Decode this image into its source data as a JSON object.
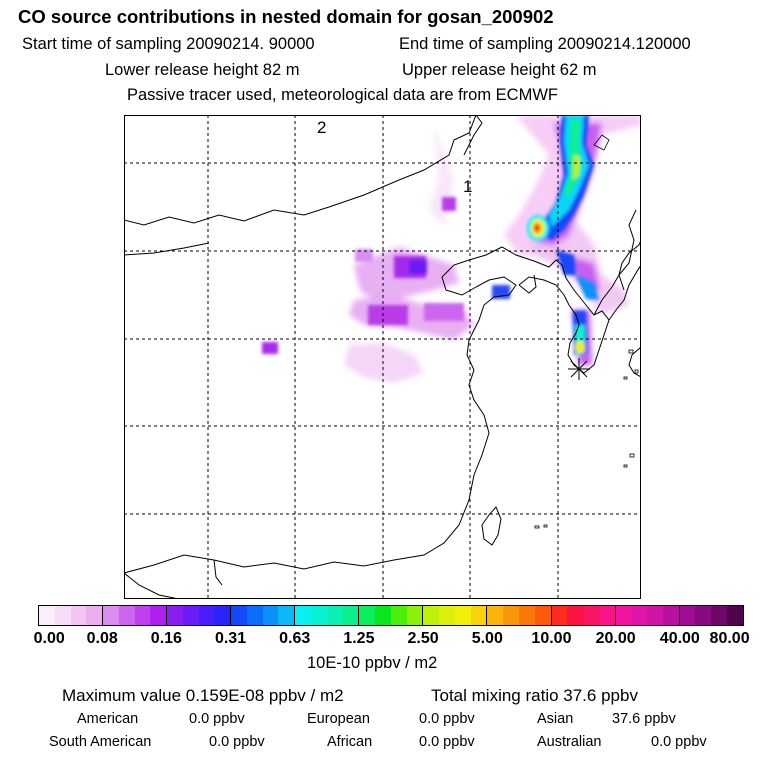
{
  "title": "CO  source contributions in nested domain for gosan_200902",
  "header": {
    "start_time": "Start time of sampling 20090214. 90000",
    "end_time": "End time of sampling 20090214.120000",
    "lower_height": "Lower release height   82 m",
    "upper_height": "Upper release height   62 m",
    "tracer_note": "Passive tracer used, meteorological data are from ECMWF"
  },
  "map": {
    "labels": [
      "2",
      "1"
    ],
    "receptor_marker": "asterisk-icon"
  },
  "colorbar": {
    "ticks": [
      "0.00",
      "0.08",
      "0.16",
      "0.31",
      "0.63",
      "1.25",
      "2.50",
      "5.00",
      "10.00",
      "20.00",
      "40.00",
      "80.00"
    ],
    "unit": "10E-10 ppbv / m2",
    "colors": [
      "#fbeefb",
      "#f7dcf7",
      "#f2c6f4",
      "#edaef0",
      "#d98ef0",
      "#cc66ee",
      "#bf40ee",
      "#b01ef0",
      "#8a1ef0",
      "#6a1ef5",
      "#4a1ef8",
      "#2a24fa",
      "#1448f8",
      "#0a6efa",
      "#0a92fa",
      "#0ab8fa",
      "#0af0f0",
      "#0af0d2",
      "#0af0b2",
      "#0aee8c",
      "#0af05a",
      "#0ae61e",
      "#4af00a",
      "#8cf00a",
      "#bef00a",
      "#dcf00a",
      "#f0f00a",
      "#fad20a",
      "#fab40a",
      "#fa960a",
      "#fa780a",
      "#fa5a0a",
      "#fa2d1e",
      "#fa1440",
      "#fa1464",
      "#fa1488",
      "#f014a0",
      "#e014a8",
      "#d014a8",
      "#b810a0",
      "#a00c94",
      "#880a80",
      "#6e0868",
      "#50044c"
    ]
  },
  "stats": {
    "max_value": "Maximum value  0.159E-08 ppbv / m2",
    "total_mixing": "Total mixing ratio      37.6 ppbv",
    "american": "American",
    "american_val": "0.0 ppbv",
    "european": "European",
    "european_val": "0.0 ppbv",
    "asian": "Asian",
    "asian_val": "37.6 ppbv",
    "south_american": "South American",
    "south_american_val": "0.0 ppbv",
    "african": "African",
    "african_val": "0.0 ppbv",
    "australian": "Australian",
    "australian_val": "0.0 ppbv"
  }
}
